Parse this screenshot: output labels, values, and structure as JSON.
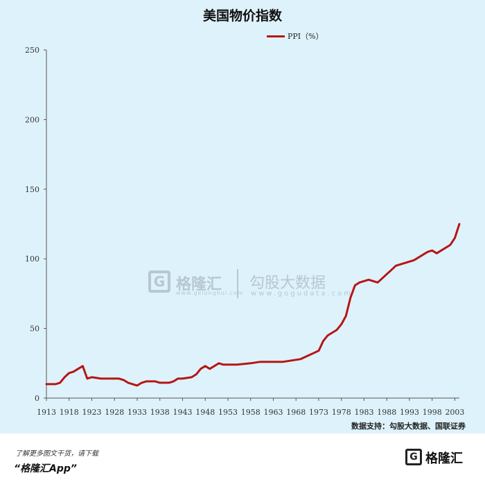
{
  "chart_data": {
    "type": "line",
    "title": "美国物价指数",
    "legend_position": "top-center",
    "series": [
      {
        "name": "PPI（%）",
        "color": "#b51616",
        "x": [
          1913,
          1915,
          1916,
          1917,
          1918,
          1919,
          1920,
          1921,
          1922,
          1923,
          1925,
          1927,
          1929,
          1930,
          1931,
          1932,
          1933,
          1934,
          1935,
          1937,
          1938,
          1939,
          1940,
          1941,
          1942,
          1943,
          1945,
          1946,
          1947,
          1948,
          1949,
          1950,
          1951,
          1952,
          1953,
          1955,
          1958,
          1960,
          1963,
          1965,
          1967,
          1969,
          1971,
          1973,
          1974,
          1975,
          1977,
          1978,
          1979,
          1980,
          1981,
          1982,
          1983,
          1984,
          1985,
          1986,
          1987,
          1988,
          1989,
          1990,
          1991,
          1992,
          1993,
          1994,
          1995,
          1996,
          1997,
          1998,
          1999,
          2000,
          2001,
          2002,
          2003,
          2004
        ],
        "values": [
          10,
          10,
          11,
          15,
          18,
          19,
          21,
          23,
          14,
          15,
          14,
          14,
          14,
          13,
          11,
          10,
          9,
          11,
          12,
          12,
          11,
          11,
          11,
          12,
          14,
          14,
          15,
          17,
          21,
          23,
          21,
          23,
          25,
          24,
          24,
          24,
          25,
          26,
          26,
          26,
          27,
          28,
          31,
          34,
          41,
          45,
          49,
          53,
          59,
          72,
          81,
          83,
          84,
          85,
          84,
          83,
          86,
          89,
          92,
          95,
          96,
          97,
          98,
          99,
          101,
          103,
          105,
          106,
          104,
          106,
          108,
          110,
          115,
          125
        ]
      }
    ],
    "x_ticks": [
      "1913",
      "1918",
      "1923",
      "1928",
      "1933",
      "1938",
      "1943",
      "1948",
      "1953",
      "1958",
      "1963",
      "1968",
      "1973",
      "1978",
      "1983",
      "1988",
      "1993",
      "1998",
      "2003"
    ],
    "y_ticks": [
      "0",
      "50",
      "100",
      "150",
      "200",
      "250"
    ],
    "xlim": [
      1913,
      2004
    ],
    "ylim": [
      0,
      250
    ]
  },
  "watermark": {
    "logo_glyph": "G",
    "brand_cn": "格隆汇",
    "brand_url": "www.gelonghui.com",
    "data_brand_cn": "勾股大数据",
    "data_url": "www.gogudata.com"
  },
  "source": "数据支持：勾股大数据、国联证券",
  "footer": {
    "note": "了解更多图文干货，请下载",
    "app": "“格隆汇App”",
    "logo_glyph": "G",
    "brand": "格隆汇"
  }
}
